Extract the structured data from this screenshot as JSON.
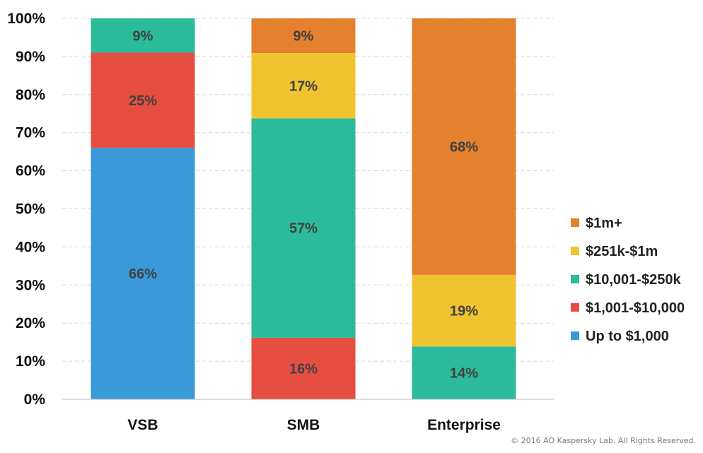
{
  "chart_data": {
    "type": "bar",
    "stacked": true,
    "categories": [
      "VSB",
      "SMB",
      "Enterprise"
    ],
    "series": [
      {
        "name": "Up to $1,000",
        "color": "#3A9AD9",
        "values": [
          66,
          0,
          0
        ]
      },
      {
        "name": "$1,001-$10,000",
        "color": "#E64E42",
        "values": [
          25,
          16,
          0
        ]
      },
      {
        "name": "$10,001-$250k",
        "color": "#2BBB9B",
        "values": [
          9,
          57,
          14
        ]
      },
      {
        "name": "$251k-$1m",
        "color": "#F0C330",
        "values": [
          0,
          17,
          19
        ]
      },
      {
        "name": "$1m+",
        "color": "#E5802F",
        "values": [
          0,
          9,
          68
        ]
      }
    ],
    "yticks": [
      "0%",
      "10%",
      "20%",
      "30%",
      "40%",
      "50%",
      "60%",
      "70%",
      "80%",
      "90%",
      "100%"
    ],
    "ylim": [
      0,
      100
    ],
    "grid": true,
    "legend": "right",
    "title": "",
    "xlabel": "",
    "ylabel": ""
  },
  "footer": {
    "copyright": "© 2016 AO Kaspersky Lab. All Rights Reserved."
  }
}
